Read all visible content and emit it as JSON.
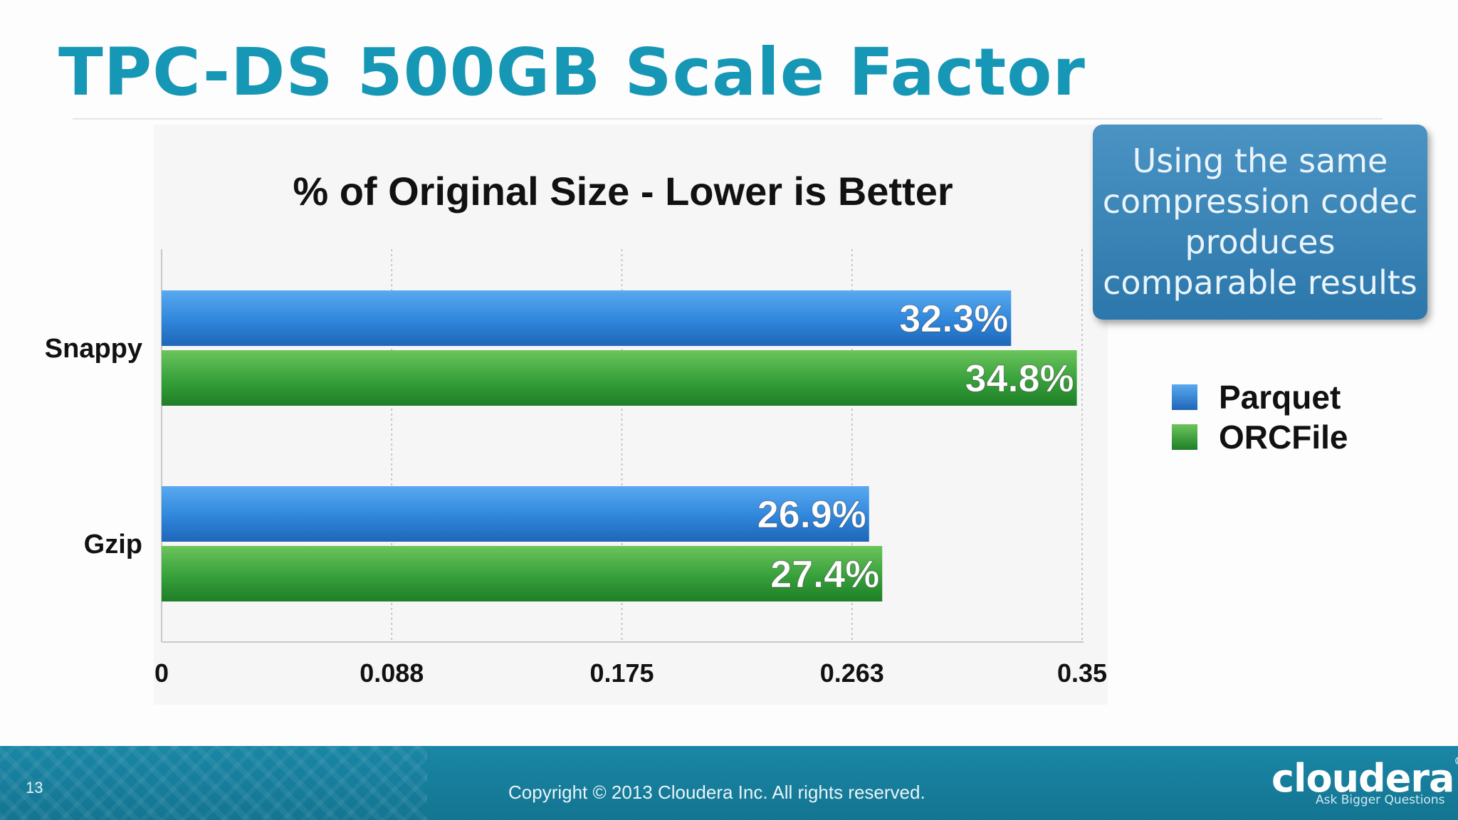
{
  "slide": {
    "title": "TPC-DS 500GB Scale Factor",
    "page_number": "13",
    "copyright": "Copyright © 2013 Cloudera Inc. All rights reserved.",
    "brand": "cloudera",
    "brand_mark": "®",
    "tagline": "Ask Bigger Questions"
  },
  "callout": {
    "lines": [
      "Using the same",
      "compression codec",
      "produces",
      "comparable results"
    ]
  },
  "colors": {
    "title": "#1797b6",
    "parquet": "#2f86db",
    "orcfile": "#2f9a2f",
    "footer": "#1a86a6",
    "callout": "#3a86ba"
  },
  "chart_data": {
    "type": "bar",
    "orientation": "horizontal",
    "title": "% of Original Size - Lower is Better",
    "categories": [
      "Snappy",
      "Gzip"
    ],
    "series": [
      {
        "name": "Parquet",
        "values": [
          0.323,
          0.269
        ],
        "labels": [
          "32.3%",
          "26.9%"
        ]
      },
      {
        "name": "ORCFile",
        "values": [
          0.348,
          0.274
        ],
        "labels": [
          "34.8%",
          "27.4%"
        ]
      }
    ],
    "xlim": [
      0,
      0.35
    ],
    "xticks": [
      "0",
      "0.088",
      "0.175",
      "0.263",
      "0.35"
    ],
    "xtick_values": [
      0,
      0.0875,
      0.175,
      0.2625,
      0.35
    ],
    "grid": "vertical dotted",
    "legend": "right"
  }
}
